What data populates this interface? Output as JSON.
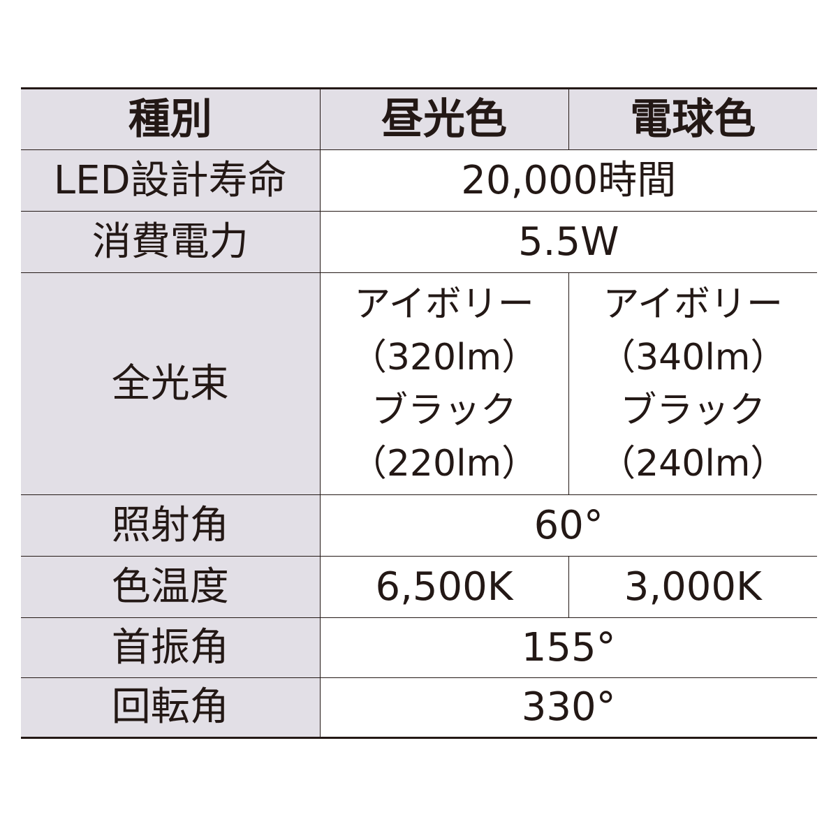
{
  "header": {
    "type_label": "種別",
    "daylight_label": "昼光色",
    "warm_label": "電球色"
  },
  "rows": {
    "life": {
      "label": "LED設計寿命",
      "value": "20,000時間"
    },
    "power": {
      "label": "消費電力",
      "value": "5.5W"
    },
    "flux": {
      "label": "全光束",
      "daylight": [
        "アイボリー",
        "（320lm）",
        "ブラック",
        "（220lm）"
      ],
      "warm": [
        "アイボリー",
        "（340lm）",
        "ブラック",
        "（240lm）"
      ]
    },
    "beam_angle": {
      "label": "照射角",
      "value": "60°"
    },
    "color_temp": {
      "label": "色温度",
      "daylight": "6,500K",
      "warm": "3,000K"
    },
    "tilt_angle": {
      "label": "首振角",
      "value": "155°"
    },
    "rotation_angle": {
      "label": "回転角",
      "value": "330°"
    }
  },
  "colors": {
    "header_bg": "#e2dfe6",
    "label_bg": "#e2dfe6",
    "text": "#231815",
    "border": "#231815"
  }
}
